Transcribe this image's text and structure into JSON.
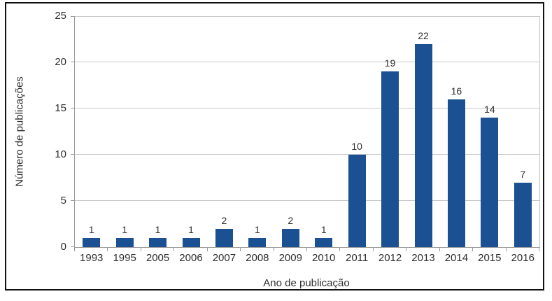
{
  "chart_data": {
    "type": "bar",
    "title": "",
    "categories": [
      "1993",
      "1995",
      "2005",
      "2006",
      "2007",
      "2008",
      "2009",
      "2010",
      "2011",
      "2012",
      "2013",
      "2014",
      "2015",
      "2016"
    ],
    "values": [
      1,
      1,
      1,
      1,
      2,
      1,
      2,
      1,
      10,
      19,
      22,
      16,
      14,
      7
    ],
    "xlabel": "Ano de publicação",
    "ylabel": "Número de publicações",
    "ylim": [
      0,
      25
    ],
    "yticks": [
      0,
      5,
      10,
      15,
      20,
      25
    ],
    "grid": "horizontal",
    "legend": "none",
    "data_labels": true
  },
  "colors": {
    "bar": "#1B5192",
    "grid": "#C6C6C6",
    "axis": "#9B9B9B",
    "text": "#2E2E2E",
    "frame_border": "#111111",
    "background": "#FFFFFF"
  }
}
